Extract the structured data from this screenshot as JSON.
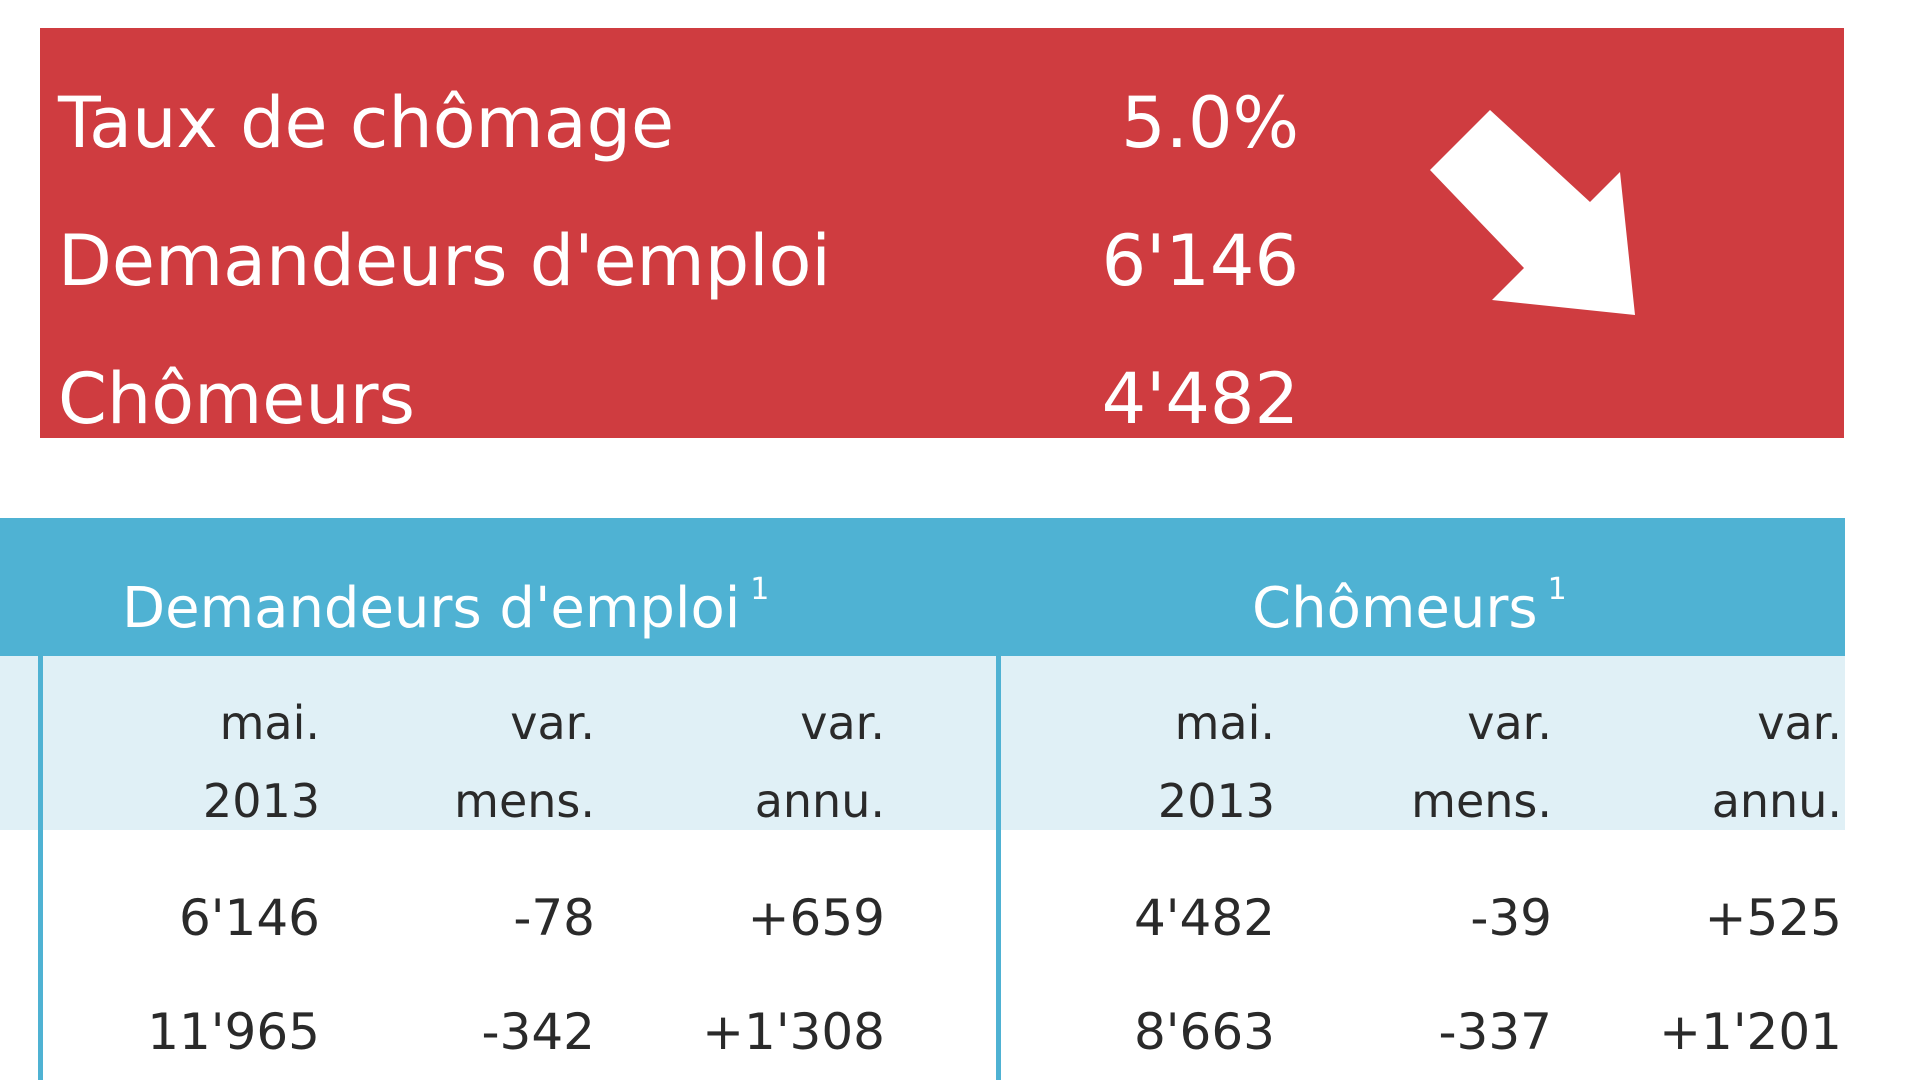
{
  "summary": {
    "rows": [
      {
        "label": "Taux de chômage",
        "value": "5.0%"
      },
      {
        "label": "Demandeurs d'emploi",
        "value": "6'146"
      },
      {
        "label": "Chômeurs",
        "value": "4'482"
      }
    ],
    "trend_icon": "arrow-down-right-icon",
    "background_color": "#cf3c40"
  },
  "table": {
    "header_color": "#4fb2d3",
    "groups": [
      {
        "title": "Demandeurs d'emploi",
        "footnote": "1",
        "columns": [
          {
            "line1": "mai.",
            "line2": "2013"
          },
          {
            "line1": "var.",
            "line2": "mens."
          },
          {
            "line1": "var.",
            "line2": "annu."
          }
        ],
        "rows": [
          [
            "6'146",
            "-78",
            "+659"
          ],
          [
            "11'965",
            "-342",
            "+1'308"
          ]
        ]
      },
      {
        "title": "Chômeurs",
        "footnote": "1",
        "columns": [
          {
            "line1": "mai.",
            "line2": "2013"
          },
          {
            "line1": "var.",
            "line2": "mens."
          },
          {
            "line1": "var.",
            "line2": "annu."
          }
        ],
        "rows": [
          [
            "4'482",
            "-39",
            "+525"
          ],
          [
            "8'663",
            "-337",
            "+1'201"
          ]
        ]
      }
    ]
  }
}
